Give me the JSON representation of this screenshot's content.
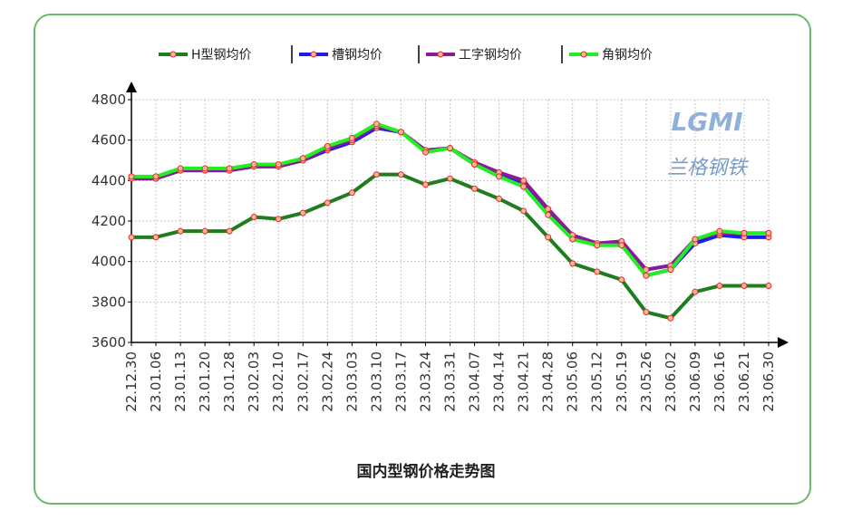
{
  "chart_data": {
    "type": "line",
    "title": "国内型钢价格走势图",
    "logo_text": "LGMI",
    "logo_caption": "兰格钢铁",
    "categories": [
      "22.12.30",
      "23.01.06",
      "23.01.13",
      "23.01.20",
      "23.01.28",
      "23.02.03",
      "23.02.10",
      "23.02.17",
      "23.02.24",
      "23.03.03",
      "23.03.10",
      "23.03.17",
      "23.03.24",
      "23.03.31",
      "23.04.07",
      "23.04.14",
      "23.04.21",
      "23.04.28",
      "23.05.06",
      "23.05.12",
      "23.05.19",
      "23.05.26",
      "23.06.02",
      "23.06.09",
      "23.06.16",
      "23.06.21",
      "23.06.30"
    ],
    "series": [
      {
        "name": "H型钢均价",
        "color": "#1e7d1e",
        "values": [
          4120,
          4120,
          4150,
          4150,
          4150,
          4220,
          4210,
          4240,
          4290,
          4340,
          4430,
          4430,
          4380,
          4410,
          4360,
          4310,
          4250,
          4120,
          3990,
          3950,
          3910,
          3750,
          3720,
          3850,
          3880,
          3880,
          3880
        ]
      },
      {
        "name": "槽钢均价",
        "color": "#1c1cf0",
        "values": [
          4410,
          4410,
          4450,
          4450,
          4450,
          4470,
          4470,
          4500,
          4550,
          4590,
          4660,
          4640,
          4550,
          4560,
          4480,
          4430,
          4390,
          4250,
          4120,
          4080,
          4090,
          3930,
          3960,
          4090,
          4130,
          4120,
          4120
        ]
      },
      {
        "name": "工字钢均价",
        "color": "#8a1a9a",
        "values": [
          4410,
          4410,
          4450,
          4450,
          4450,
          4470,
          4470,
          4500,
          4560,
          4600,
          4670,
          4640,
          4550,
          4560,
          4490,
          4440,
          4400,
          4260,
          4130,
          4090,
          4100,
          3960,
          3980,
          4110,
          4140,
          4140,
          4140
        ]
      },
      {
        "name": "角钢均价",
        "color": "#22ee22",
        "values": [
          4420,
          4420,
          4460,
          4460,
          4460,
          4480,
          4480,
          4510,
          4570,
          4610,
          4680,
          4640,
          4540,
          4560,
          4480,
          4420,
          4370,
          4230,
          4110,
          4080,
          4080,
          3930,
          3960,
          4110,
          4150,
          4140,
          4140
        ]
      }
    ],
    "ylim": [
      3600,
      4800
    ],
    "yticks": [
      3600,
      3800,
      4000,
      4200,
      4400,
      4600,
      4800
    ],
    "grid": true
  }
}
